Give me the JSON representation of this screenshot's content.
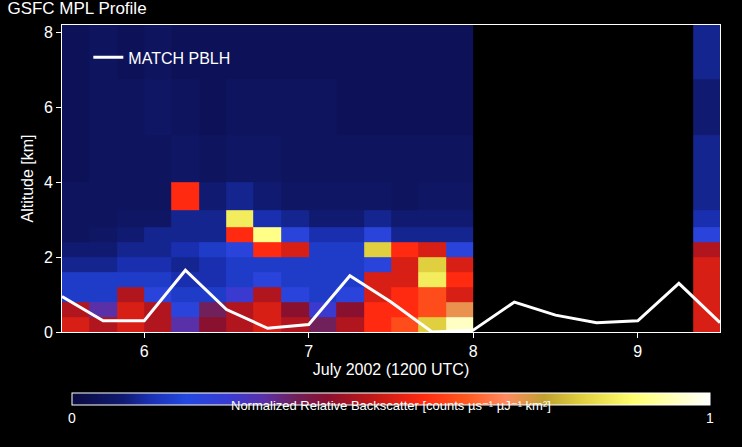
{
  "chart_data": {
    "type": "heatmap",
    "title": "GSFC MPL Profile",
    "xlabel": "July 2002 (1200 UTC)",
    "ylabel": "Altitude [km]",
    "xlim": [
      5.5,
      9.5
    ],
    "xticks": [
      6,
      7,
      8,
      9
    ],
    "ylim": [
      0,
      8.2
    ],
    "yticks": [
      0,
      2,
      4,
      6,
      8
    ],
    "legend": "upper left",
    "x": [
      5.58,
      5.75,
      5.92,
      6.08,
      6.25,
      6.42,
      6.58,
      6.75,
      6.92,
      7.08,
      7.25,
      7.42,
      7.58,
      7.75,
      7.92,
      8.08,
      8.25,
      8.42,
      8.58,
      8.75,
      8.92,
      9.08,
      9.25,
      9.42
    ],
    "y": [
      0.2,
      0.6,
      1.0,
      1.4,
      1.8,
      2.2,
      2.6,
      3.0,
      3.5,
      4.5,
      6.0,
      7.5
    ],
    "z": [
      [
        0.5,
        0.45,
        0.5,
        0.45,
        0.3,
        0.4,
        0.45,
        0.5,
        0.45,
        0.35,
        0.45,
        0.55,
        0.6,
        0.8,
        0.95,
        null,
        null,
        null,
        null,
        null,
        null,
        null,
        null,
        0.5
      ],
      [
        0.45,
        0.3,
        0.5,
        0.45,
        0.2,
        0.35,
        0.45,
        0.5,
        0.4,
        0.25,
        0.4,
        0.55,
        0.55,
        0.6,
        0.7,
        null,
        null,
        null,
        null,
        null,
        null,
        null,
        null,
        0.5
      ],
      [
        0.15,
        0.15,
        0.45,
        0.2,
        0.15,
        0.15,
        0.25,
        0.45,
        0.2,
        0.15,
        0.2,
        0.5,
        0.55,
        0.6,
        0.5,
        null,
        null,
        null,
        null,
        null,
        null,
        null,
        null,
        0.5
      ],
      [
        0.15,
        0.15,
        0.15,
        0.15,
        0.12,
        0.12,
        0.15,
        0.2,
        0.15,
        0.15,
        0.15,
        0.5,
        0.5,
        0.85,
        0.55,
        null,
        null,
        null,
        null,
        null,
        null,
        null,
        null,
        0.5
      ],
      [
        0.1,
        0.1,
        0.12,
        0.12,
        0.1,
        0.12,
        0.15,
        0.15,
        0.15,
        0.15,
        0.15,
        0.2,
        0.5,
        0.8,
        0.5,
        null,
        null,
        null,
        null,
        null,
        null,
        null,
        null,
        0.5
      ],
      [
        0.08,
        0.08,
        0.1,
        0.1,
        0.12,
        0.15,
        0.2,
        0.55,
        0.5,
        0.15,
        0.15,
        0.8,
        0.55,
        0.5,
        0.2,
        null,
        null,
        null,
        null,
        null,
        null,
        null,
        null,
        0.45
      ],
      [
        0.05,
        0.06,
        0.08,
        0.1,
        0.1,
        0.1,
        0.55,
        0.9,
        0.2,
        0.12,
        0.12,
        0.2,
        0.1,
        0.1,
        0.1,
        null,
        null,
        null,
        null,
        null,
        null,
        null,
        null,
        0.2
      ],
      [
        0.05,
        0.05,
        0.06,
        0.06,
        0.1,
        0.1,
        0.85,
        0.12,
        0.1,
        0.08,
        0.08,
        0.1,
        0.08,
        0.08,
        0.08,
        null,
        null,
        null,
        null,
        null,
        null,
        null,
        null,
        0.12
      ],
      [
        0.05,
        0.05,
        0.05,
        0.05,
        0.55,
        0.08,
        0.1,
        0.08,
        0.06,
        0.06,
        0.06,
        0.06,
        0.05,
        0.06,
        0.06,
        null,
        null,
        null,
        null,
        null,
        null,
        null,
        null,
        0.1
      ],
      [
        0.04,
        0.05,
        0.05,
        0.05,
        0.06,
        0.05,
        0.06,
        0.06,
        0.05,
        0.05,
        0.05,
        0.05,
        0.05,
        0.05,
        0.05,
        null,
        null,
        null,
        null,
        null,
        null,
        null,
        null,
        0.1
      ],
      [
        0.04,
        0.05,
        0.05,
        0.06,
        0.05,
        0.04,
        0.05,
        0.05,
        0.05,
        0.05,
        0.04,
        0.04,
        0.04,
        0.04,
        0.04,
        null,
        null,
        null,
        null,
        null,
        null,
        null,
        null,
        0.08
      ],
      [
        0.04,
        0.05,
        0.04,
        0.05,
        0.04,
        0.04,
        0.04,
        0.04,
        0.04,
        0.04,
        0.04,
        0.04,
        0.04,
        0.04,
        0.04,
        null,
        null,
        null,
        null,
        null,
        null,
        null,
        null,
        0.1
      ]
    ],
    "colorbar": {
      "range": [
        0,
        1
      ],
      "ticks": [
        0,
        1
      ],
      "title": "Normalized Relative Backscatter [counts µs⁻¹ µJ⁻¹ km²]"
    },
    "series": [
      {
        "name": "MATCH PBLH",
        "type": "line",
        "color": "#ffffff",
        "x": [
          5.5,
          5.75,
          6.0,
          6.25,
          6.5,
          6.75,
          7.0,
          7.25,
          7.5,
          7.75,
          8.0,
          8.25,
          8.5,
          8.75,
          9.0,
          9.25,
          9.5
        ],
        "values": [
          0.95,
          0.3,
          0.3,
          1.65,
          0.6,
          0.1,
          0.2,
          1.5,
          0.8,
          0.0,
          0.05,
          0.8,
          0.45,
          0.25,
          0.3,
          1.3,
          0.25
        ]
      }
    ]
  }
}
